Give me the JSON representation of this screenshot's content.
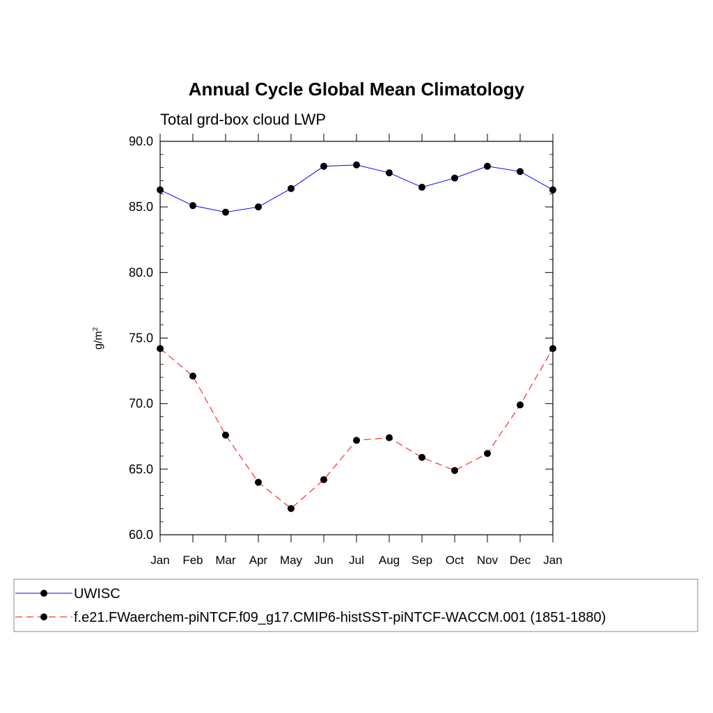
{
  "chart_data": {
    "type": "line",
    "title": "Annual Cycle Global Mean Climatology",
    "subtitle": "Total grd-box cloud LWP",
    "ylabel": "g/m",
    "ylabel_superscript": "2",
    "ylim": [
      60,
      90
    ],
    "yticks": [
      "60.0",
      "65.0",
      "70.0",
      "75.0",
      "80.0",
      "85.0",
      "90.0"
    ],
    "categories": [
      "Jan",
      "Feb",
      "Mar",
      "Apr",
      "May",
      "Jun",
      "Jul",
      "Aug",
      "Sep",
      "Oct",
      "Nov",
      "Dec",
      "Jan"
    ],
    "series": [
      {
        "name": "UWISC",
        "color": "#0000ff",
        "dashed": false,
        "values": [
          86.3,
          85.1,
          84.6,
          85.0,
          86.4,
          88.1,
          88.2,
          87.6,
          86.5,
          87.2,
          88.1,
          87.7,
          86.3
        ]
      },
      {
        "name": "f.e21.FWaerchem-piNTCF.f09_g17.CMIP6-histSST-piNTCF-WACCM.001 (1851-1880)",
        "color": "#ff0000",
        "dashed": true,
        "values": [
          74.2,
          72.1,
          67.6,
          64.0,
          62.0,
          64.2,
          67.2,
          67.4,
          65.9,
          64.9,
          66.2,
          69.9,
          74.2
        ]
      }
    ]
  }
}
